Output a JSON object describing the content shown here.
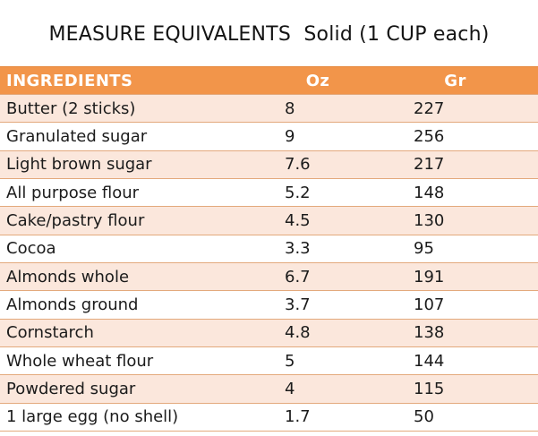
{
  "title": "MEASURE EQUIVALENTS  Solid (1 CUP each)",
  "table": {
    "headers": [
      "INGREDIENTS",
      "Oz",
      "Gr"
    ],
    "rows": [
      {
        "ingredient": "Butter (2 sticks)",
        "oz": "8",
        "gr": "227"
      },
      {
        "ingredient": "Granulated sugar",
        "oz": "9",
        "gr": "256"
      },
      {
        "ingredient": "Light brown sugar",
        "oz": "7.6",
        "gr": "217"
      },
      {
        "ingredient": "All purpose flour",
        "oz": "5.2",
        "gr": "148"
      },
      {
        "ingredient": "Cake/pastry flour",
        "oz": "4.5",
        "gr": "130"
      },
      {
        "ingredient": "Cocoa",
        "oz": "3.3",
        "gr": "95"
      },
      {
        "ingredient": "Almonds whole",
        "oz": "6.7",
        "gr": "191"
      },
      {
        "ingredient": "Almonds ground",
        "oz": "3.7",
        "gr": "107"
      },
      {
        "ingredient": "Cornstarch",
        "oz": "4.8",
        "gr": "138"
      },
      {
        "ingredient": "Whole wheat flour",
        "oz": "5",
        "gr": "144"
      },
      {
        "ingredient": "Powdered sugar",
        "oz": "4",
        "gr": "115"
      },
      {
        "ingredient": "1 large egg (no shell)",
        "oz": "1.7",
        "gr": "50"
      }
    ]
  },
  "colors": {
    "header_bg": "#F2954A",
    "header_text": "#FFFFFF",
    "header_top_border": "#E5873B",
    "row_alt_bg": "#FBE7DC",
    "row_bg": "#FFFFFF",
    "border_color": "#E3A97C",
    "body_text": "#1B1B1B",
    "page_bg": "#FFFFFF"
  }
}
